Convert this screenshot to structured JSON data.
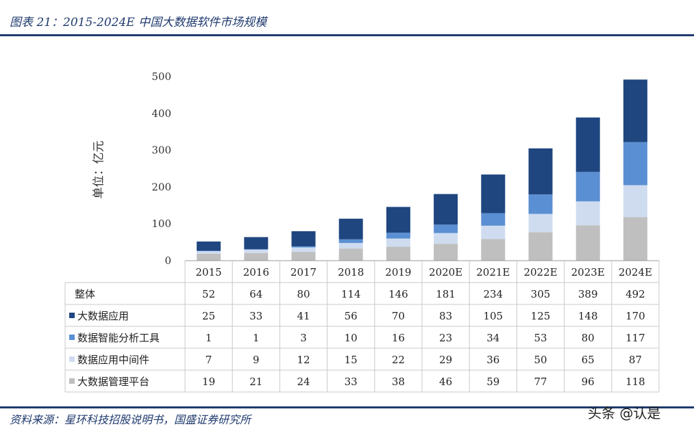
{
  "header": {
    "title": "图表 21：2015-2024E 中国大数据软件市场规模"
  },
  "footer": {
    "source": "资料来源：星环科技招股说明书，国盛证券研究所",
    "watermark": "头条 @认是"
  },
  "chart_data": {
    "type": "bar",
    "stacked": true,
    "ylabel": "单位：亿元",
    "ylim": [
      0,
      500
    ],
    "yticks": [
      0,
      100,
      200,
      300,
      400,
      500
    ],
    "categories": [
      "2015",
      "2016",
      "2017",
      "2018",
      "2019",
      "2020E",
      "2021E",
      "2022E",
      "2023E",
      "2024E"
    ],
    "total_label": "整体",
    "totals": [
      52,
      64,
      80,
      114,
      146,
      181,
      234,
      305,
      389,
      492
    ],
    "series": [
      {
        "name": "大数据管理平台",
        "color": "#bfbfbf",
        "values": [
          19,
          21,
          24,
          33,
          38,
          46,
          59,
          77,
          96,
          118
        ]
      },
      {
        "name": "数据应用中间件",
        "color": "#cfdcf0",
        "values": [
          7,
          9,
          12,
          15,
          22,
          29,
          36,
          50,
          65,
          87
        ]
      },
      {
        "name": "数据智能分析工具",
        "color": "#5b8fd3",
        "values": [
          1,
          1,
          3,
          10,
          16,
          23,
          34,
          53,
          80,
          117
        ]
      },
      {
        "name": "大数据应用",
        "color": "#1f467f",
        "values": [
          25,
          33,
          41,
          56,
          70,
          83,
          105,
          125,
          148,
          170
        ]
      }
    ],
    "table_row_order": [
      "大数据应用",
      "数据智能分析工具",
      "数据应用中间件",
      "大数据管理平台"
    ],
    "grid": false,
    "legend": "data-table"
  }
}
